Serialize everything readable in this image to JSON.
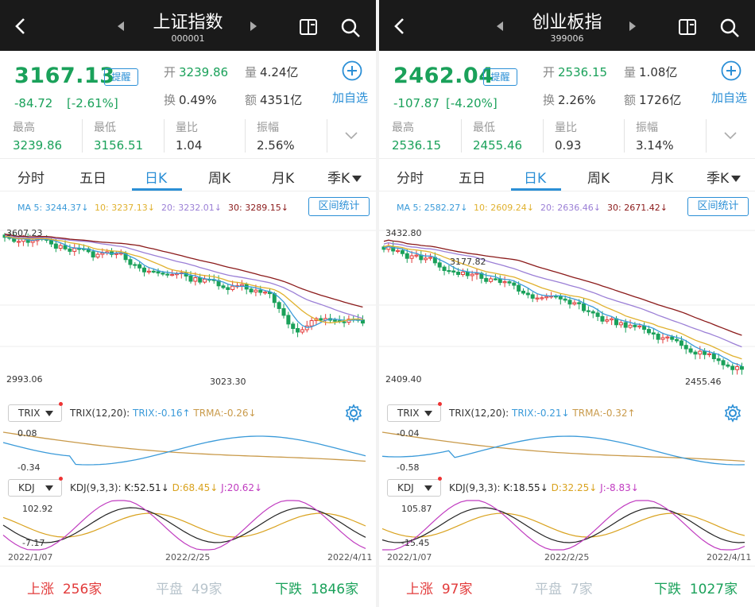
{
  "colors": {
    "up": "#e23b3b",
    "down": "#1aa15a",
    "accent": "#2b8fd6",
    "ma5": "#3a9ad9",
    "ma10": "#e0b12e",
    "ma20": "#9b7fd6",
    "ma30": "#8b1a1a"
  },
  "tabs": [
    "分时",
    "五日",
    "日K",
    "周K",
    "月K",
    "季K"
  ],
  "active_tab": "日K",
  "labels": {
    "remind": "提醒",
    "add": "加自选",
    "range_stats": "区间统计",
    "open": "开",
    "volume": "量",
    "turnover": "换",
    "amount": "额",
    "high": "最高",
    "low": "最低",
    "vol_ratio": "量比",
    "amplitude": "振幅",
    "up": "上涨",
    "flat": "平盘",
    "down": "下跌",
    "trix": "TRIX",
    "kdj": "KDJ"
  },
  "panels": [
    {
      "name": "上证指数",
      "code": "000001",
      "price": "3167.13",
      "change": "-84.72",
      "change_pct": "[-2.61%]",
      "open": "3239.86",
      "volume": "4.24亿",
      "turnover": "0.49%",
      "amount": "4351亿",
      "high": "3239.86",
      "low": "3156.51",
      "vol_ratio": "1.04",
      "amplitude": "2.56%",
      "ma": {
        "ma5": "MA 5: 3244.37↓",
        "ma10": "10: 3237.13↓",
        "ma20": "20: 3232.01↓",
        "ma30": "30: 3289.15↓"
      },
      "k_top": "3607.23",
      "k_bottom": "2993.06",
      "k_low_mark": "3023.30",
      "trix_params": "TRIX(12,20):",
      "trix_val": "TRIX:-0.16↑",
      "trma_val": "TRMA:-0.26↓",
      "trix_top": "0.08",
      "trix_bottom": "-0.34",
      "kdj_params": "KDJ(9,3,3):",
      "k_val": "K:52.51↓",
      "d_val": "D:68.45↓",
      "j_val": "J:20.62↓",
      "kdj_top": "102.92",
      "kdj_bottom": "-7.17",
      "dates": [
        "2022/1/07",
        "2022/2/25",
        "2022/4/11"
      ],
      "up_count": "256家",
      "flat_count": "49家",
      "down_count": "1846家"
    },
    {
      "name": "创业板指",
      "code": "399006",
      "price": "2462.04",
      "change": "-107.87",
      "change_pct": "[-4.20%]",
      "open": "2536.15",
      "volume": "1.08亿",
      "turnover": "2.26%",
      "amount": "1726亿",
      "high": "2536.15",
      "low": "2455.46",
      "vol_ratio": "0.93",
      "amplitude": "3.14%",
      "ma": {
        "ma5": "MA 5: 2582.27↓",
        "ma10": "10: 2609.24↓",
        "ma20": "20: 2636.46↓",
        "ma30": "30: 2671.42↓"
      },
      "k_top": "3432.80",
      "k_bottom": "2409.40",
      "k_low_mark": "2455.46",
      "k_mid_mark": "3177.82",
      "trix_params": "TRIX(12,20):",
      "trix_val": "TRIX:-0.21↓",
      "trma_val": "TRMA:-0.32↑",
      "trix_top": "-0.04",
      "trix_bottom": "-0.58",
      "kdj_params": "KDJ(9,3,3):",
      "k_val": "K:18.55↓",
      "d_val": "D:32.25↓",
      "j_val": "J:-8.83↓",
      "kdj_top": "105.87",
      "kdj_bottom": "-15.45",
      "dates": [
        "2022/1/07",
        "2022/2/25",
        "2022/4/11"
      ],
      "up_count": "97家",
      "flat_count": "7家",
      "down_count": "1027家"
    }
  ]
}
